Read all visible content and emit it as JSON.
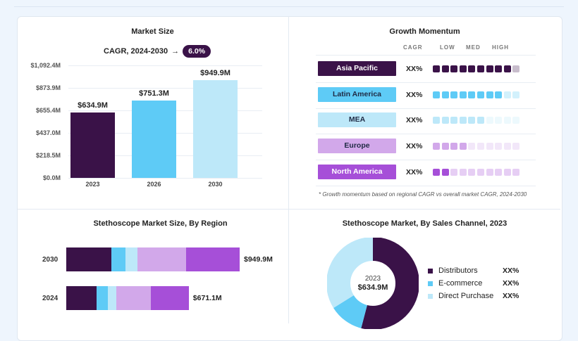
{
  "colors": {
    "c1": "#3a1248",
    "c2": "#5ecbf6",
    "c3": "#bde8f9",
    "c4": "#d2a8ea",
    "c5": "#a64fd8"
  },
  "market_size": {
    "title": "Market Size",
    "cagr_label": "CAGR, 2024-2030",
    "cagr_value": "6.0%"
  },
  "growth": {
    "title": "Growth Momentum",
    "headers": [
      "CAGR",
      "LOW",
      "MED",
      "HIGH"
    ],
    "rows": [
      {
        "region": "Asia Pacific",
        "value": "XX%",
        "filled": 9,
        "bg": "#3a1248",
        "fg": "#ffffff"
      },
      {
        "region": "Latin America",
        "value": "XX%",
        "filled": 8,
        "bg": "#5ecbf6",
        "fg": "#1f2a44"
      },
      {
        "region": "MEA",
        "value": "XX%",
        "filled": 6,
        "bg": "#bde8f9",
        "fg": "#1f2a44"
      },
      {
        "region": "Europe",
        "value": "XX%",
        "filled": 4,
        "bg": "#d2a8ea",
        "fg": "#1f2a44"
      },
      {
        "region": "North America",
        "value": "XX%",
        "filled": 2,
        "bg": "#a64fd8",
        "fg": "#ffffff"
      }
    ],
    "footnote": "* Growth momentum based on regional CAGR vs overall market CAGR, 2024-2030"
  },
  "region_chart": {
    "title": "Stethoscope Market Size, By Region"
  },
  "channel_chart": {
    "title": "Stethoscope Market, By Sales Channel, 2023",
    "center_year": "2023",
    "center_value": "$634.9M",
    "legend": [
      {
        "name": "Distributors",
        "value": "XX%"
      },
      {
        "name": "E-commerce",
        "value": "XX%"
      },
      {
        "name": "Direct Purchase",
        "value": "XX%"
      }
    ]
  },
  "chart_data": [
    {
      "type": "bar",
      "title": "Market Size",
      "categories": [
        "2023",
        "2026",
        "2030"
      ],
      "values": [
        634.9,
        751.3,
        949.9
      ],
      "data_labels": [
        "$634.9M",
        "$751.3M",
        "$949.9M"
      ],
      "ylim": [
        0,
        1092.4
      ],
      "yticks": [
        "$0.0M",
        "$218.5M",
        "$437.0M",
        "$655.4M",
        "$873.9M",
        "$1,092.4M"
      ]
    },
    {
      "type": "bar",
      "orientation": "horizontal",
      "stacked": true,
      "title": "Stethoscope Market Size, By Region",
      "categories": [
        "2030",
        "2024"
      ],
      "totals": [
        949.9,
        671.1
      ],
      "total_labels": [
        "$949.9M",
        "$671.1M"
      ],
      "segment_fractions": [
        [
          0.26,
          0.08,
          0.07,
          0.28,
          0.31
        ],
        [
          0.25,
          0.09,
          0.07,
          0.28,
          0.31
        ]
      ]
    },
    {
      "type": "pie",
      "donut": true,
      "title": "Stethoscope Market, By Sales Channel, 2023",
      "labels": [
        "Distributors",
        "E-commerce",
        "Direct Purchase"
      ],
      "values": [
        54,
        12,
        34
      ]
    }
  ]
}
